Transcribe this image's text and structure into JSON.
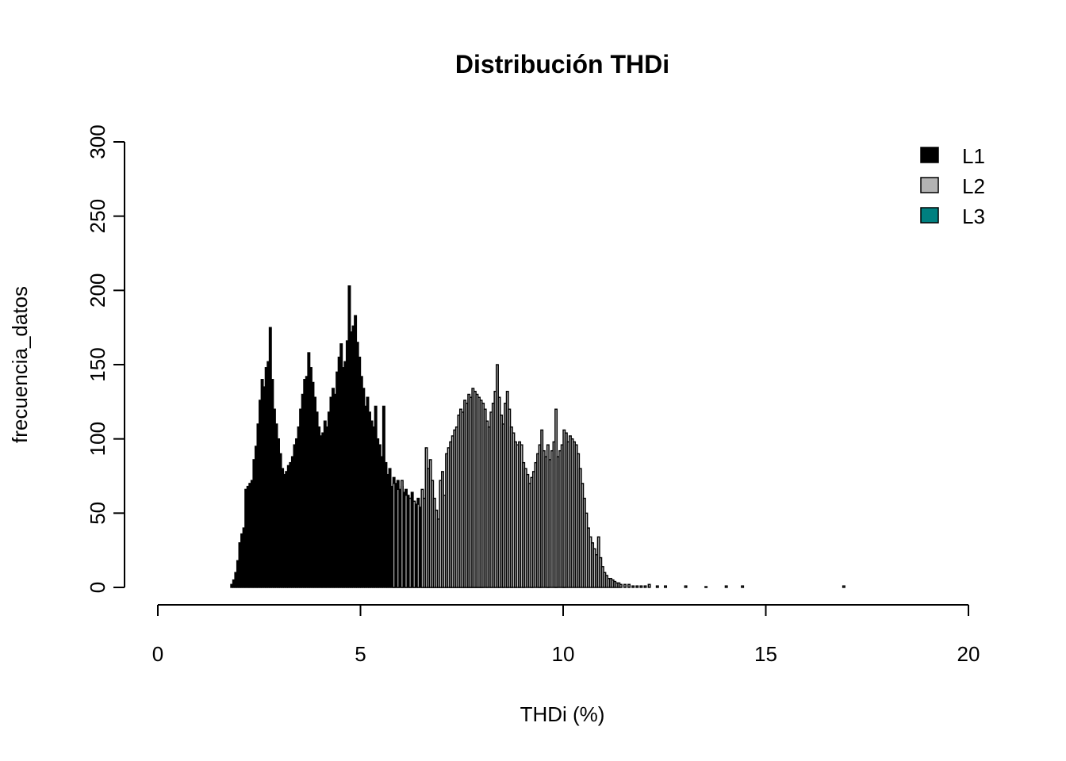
{
  "chart_data": {
    "type": "bar",
    "title": "Distribución THDi",
    "xlabel": "THDi (%)",
    "ylabel": "frecuencia_datos",
    "xlim": [
      0,
      20
    ],
    "ylim": [
      0,
      300
    ],
    "x_ticks": [
      0,
      5,
      10,
      15,
      20
    ],
    "y_ticks": [
      0,
      50,
      100,
      150,
      200,
      250,
      300
    ],
    "grid": false,
    "legend_position": "top-right",
    "legend": [
      {
        "label": "L1",
        "color": "#000000"
      },
      {
        "label": "L2",
        "color": "#b3b3b3"
      },
      {
        "label": "L3",
        "color": "#008080"
      }
    ],
    "bar_width": 0.05,
    "series": [
      {
        "name": "L1",
        "color": "#000000",
        "points": [
          [
            1.8,
            2
          ],
          [
            1.85,
            5
          ],
          [
            1.9,
            10
          ],
          [
            1.95,
            18
          ],
          [
            2.0,
            30
          ],
          [
            2.05,
            36
          ],
          [
            2.1,
            40
          ],
          [
            2.15,
            66
          ],
          [
            2.2,
            68
          ],
          [
            2.25,
            70
          ],
          [
            2.3,
            72
          ],
          [
            2.35,
            86
          ],
          [
            2.4,
            95
          ],
          [
            2.45,
            110
          ],
          [
            2.5,
            126
          ],
          [
            2.55,
            140
          ],
          [
            2.6,
            135
          ],
          [
            2.65,
            148
          ],
          [
            2.7,
            152
          ],
          [
            2.75,
            175
          ],
          [
            2.8,
            140
          ],
          [
            2.85,
            120
          ],
          [
            2.9,
            110
          ],
          [
            2.95,
            100
          ],
          [
            3.0,
            90
          ],
          [
            3.05,
            80
          ],
          [
            3.1,
            76
          ],
          [
            3.15,
            78
          ],
          [
            3.2,
            82
          ],
          [
            3.25,
            84
          ],
          [
            3.3,
            88
          ],
          [
            3.35,
            96
          ],
          [
            3.4,
            100
          ],
          [
            3.45,
            108
          ],
          [
            3.5,
            120
          ],
          [
            3.55,
            130
          ],
          [
            3.6,
            140
          ],
          [
            3.65,
            142
          ],
          [
            3.7,
            158
          ],
          [
            3.75,
            148
          ],
          [
            3.8,
            138
          ],
          [
            3.85,
            128
          ],
          [
            3.9,
            118
          ],
          [
            3.95,
            108
          ],
          [
            4.0,
            102
          ],
          [
            4.05,
            104
          ],
          [
            4.1,
            112
          ],
          [
            4.15,
            108
          ],
          [
            4.2,
            118
          ],
          [
            4.25,
            128
          ],
          [
            4.3,
            134
          ],
          [
            4.35,
            130
          ],
          [
            4.4,
            145
          ],
          [
            4.45,
            155
          ],
          [
            4.5,
            164
          ],
          [
            4.55,
            148
          ],
          [
            4.6,
            152
          ],
          [
            4.65,
            166
          ],
          [
            4.7,
            203
          ],
          [
            4.75,
            172
          ],
          [
            4.8,
            176
          ],
          [
            4.85,
            183
          ],
          [
            4.9,
            165
          ],
          [
            4.95,
            155
          ],
          [
            5.0,
            142
          ],
          [
            5.05,
            134
          ],
          [
            5.1,
            122
          ],
          [
            5.15,
            128
          ],
          [
            5.2,
            118
          ],
          [
            5.25,
            112
          ],
          [
            5.3,
            108
          ],
          [
            5.35,
            122
          ],
          [
            5.4,
            100
          ],
          [
            5.45,
            96
          ],
          [
            5.5,
            88
          ],
          [
            5.55,
            122
          ],
          [
            5.6,
            84
          ],
          [
            5.65,
            76
          ],
          [
            5.7,
            80
          ],
          [
            5.75,
            68
          ],
          [
            5.8,
            74
          ],
          [
            5.85,
            70
          ],
          [
            5.9,
            72
          ],
          [
            5.95,
            66
          ],
          [
            6.0,
            68
          ],
          [
            6.05,
            64
          ],
          [
            6.1,
            66
          ],
          [
            6.15,
            62
          ],
          [
            6.2,
            60
          ],
          [
            6.25,
            64
          ],
          [
            6.3,
            58
          ],
          [
            6.35,
            56
          ],
          [
            6.4,
            60
          ],
          [
            6.45,
            54
          ],
          [
            6.5,
            52
          ],
          [
            6.55,
            50
          ],
          [
            6.6,
            48
          ],
          [
            6.65,
            46
          ],
          [
            6.7,
            44
          ],
          [
            6.75,
            42
          ],
          [
            6.8,
            40
          ],
          [
            6.85,
            38
          ],
          [
            6.9,
            36
          ],
          [
            6.95,
            34
          ],
          [
            7.0,
            30
          ],
          [
            7.05,
            28
          ],
          [
            7.1,
            26
          ],
          [
            7.15,
            24
          ],
          [
            7.2,
            22
          ],
          [
            7.25,
            20
          ],
          [
            7.3,
            18
          ],
          [
            7.35,
            17
          ],
          [
            7.4,
            16
          ],
          [
            7.45,
            15
          ],
          [
            7.5,
            14
          ],
          [
            7.55,
            13
          ],
          [
            7.6,
            12
          ],
          [
            7.65,
            11
          ],
          [
            7.7,
            10
          ],
          [
            7.75,
            9
          ],
          [
            7.8,
            8
          ],
          [
            7.85,
            8
          ],
          [
            7.9,
            7
          ],
          [
            7.95,
            6
          ],
          [
            8.0,
            6
          ],
          [
            8.1,
            5
          ],
          [
            8.2,
            5
          ],
          [
            8.3,
            4
          ],
          [
            8.4,
            4
          ],
          [
            8.5,
            3
          ],
          [
            8.6,
            3
          ],
          [
            8.7,
            2
          ],
          [
            8.8,
            2
          ],
          [
            8.9,
            2
          ],
          [
            9.0,
            2
          ],
          [
            9.2,
            1
          ],
          [
            9.4,
            1
          ],
          [
            9.6,
            1
          ],
          [
            9.8,
            1
          ],
          [
            10.0,
            1
          ]
        ]
      },
      {
        "name": "L2",
        "color": "#b3b3b3",
        "points": [
          [
            5.8,
            70
          ],
          [
            5.9,
            66
          ],
          [
            6.0,
            72
          ],
          [
            6.1,
            62
          ],
          [
            6.2,
            60
          ],
          [
            6.3,
            58
          ],
          [
            6.4,
            56
          ],
          [
            6.5,
            66
          ],
          [
            6.55,
            60
          ],
          [
            6.6,
            94
          ],
          [
            6.65,
            80
          ],
          [
            6.7,
            86
          ],
          [
            6.75,
            72
          ],
          [
            6.8,
            60
          ],
          [
            6.85,
            52
          ],
          [
            6.9,
            46
          ],
          [
            6.95,
            72
          ],
          [
            7.0,
            78
          ],
          [
            7.05,
            62
          ],
          [
            7.1,
            90
          ],
          [
            7.15,
            94
          ],
          [
            7.2,
            98
          ],
          [
            7.25,
            102
          ],
          [
            7.3,
            106
          ],
          [
            7.35,
            108
          ],
          [
            7.4,
            116
          ],
          [
            7.45,
            120
          ],
          [
            7.5,
            118
          ],
          [
            7.55,
            126
          ],
          [
            7.6,
            124
          ],
          [
            7.65,
            130
          ],
          [
            7.7,
            128
          ],
          [
            7.75,
            134
          ],
          [
            7.8,
            132
          ],
          [
            7.85,
            130
          ],
          [
            7.9,
            128
          ],
          [
            7.95,
            126
          ],
          [
            8.0,
            124
          ],
          [
            8.05,
            120
          ],
          [
            8.1,
            112
          ],
          [
            8.15,
            108
          ],
          [
            8.2,
            118
          ],
          [
            8.25,
            124
          ],
          [
            8.3,
            132
          ],
          [
            8.35,
            150
          ],
          [
            8.4,
            128
          ],
          [
            8.45,
            116
          ],
          [
            8.5,
            110
          ],
          [
            8.55,
            124
          ],
          [
            8.6,
            132
          ],
          [
            8.65,
            120
          ],
          [
            8.7,
            108
          ],
          [
            8.75,
            104
          ],
          [
            8.8,
            98
          ],
          [
            8.85,
            96
          ],
          [
            8.9,
            98
          ],
          [
            8.95,
            96
          ],
          [
            9.0,
            84
          ],
          [
            9.05,
            80
          ],
          [
            9.1,
            76
          ],
          [
            9.15,
            70
          ],
          [
            9.2,
            74
          ],
          [
            9.25,
            78
          ],
          [
            9.3,
            84
          ],
          [
            9.35,
            90
          ],
          [
            9.4,
            96
          ],
          [
            9.45,
            106
          ],
          [
            9.5,
            92
          ],
          [
            9.55,
            88
          ],
          [
            9.6,
            96
          ],
          [
            9.65,
            86
          ],
          [
            9.7,
            92
          ],
          [
            9.75,
            98
          ],
          [
            9.8,
            120
          ],
          [
            9.85,
            88
          ],
          [
            9.9,
            92
          ],
          [
            9.95,
            96
          ],
          [
            10.0,
            106
          ],
          [
            10.05,
            104
          ],
          [
            10.1,
            98
          ],
          [
            10.15,
            102
          ],
          [
            10.2,
            100
          ],
          [
            10.25,
            98
          ],
          [
            10.3,
            96
          ],
          [
            10.35,
            90
          ],
          [
            10.4,
            80
          ],
          [
            10.45,
            70
          ],
          [
            10.5,
            60
          ],
          [
            10.55,
            50
          ],
          [
            10.6,
            40
          ],
          [
            10.65,
            34
          ],
          [
            10.7,
            30
          ],
          [
            10.75,
            26
          ],
          [
            10.8,
            22
          ],
          [
            10.85,
            34
          ],
          [
            10.9,
            20
          ],
          [
            10.95,
            14
          ],
          [
            11.0,
            10
          ],
          [
            11.05,
            8
          ],
          [
            11.1,
            6
          ],
          [
            11.15,
            6
          ],
          [
            11.2,
            5
          ],
          [
            11.25,
            4
          ],
          [
            11.3,
            3
          ],
          [
            11.35,
            3
          ],
          [
            11.4,
            2
          ],
          [
            11.5,
            2
          ],
          [
            11.6,
            2
          ],
          [
            11.7,
            1
          ],
          [
            11.8,
            1
          ],
          [
            11.9,
            1
          ],
          [
            12.0,
            1
          ],
          [
            12.1,
            2
          ],
          [
            12.3,
            1
          ],
          [
            12.5,
            1
          ],
          [
            13.0,
            1
          ],
          [
            13.5,
            0.5
          ],
          [
            14.0,
            1
          ],
          [
            14.4,
            1
          ],
          [
            16.9,
            1
          ]
        ]
      }
    ]
  }
}
